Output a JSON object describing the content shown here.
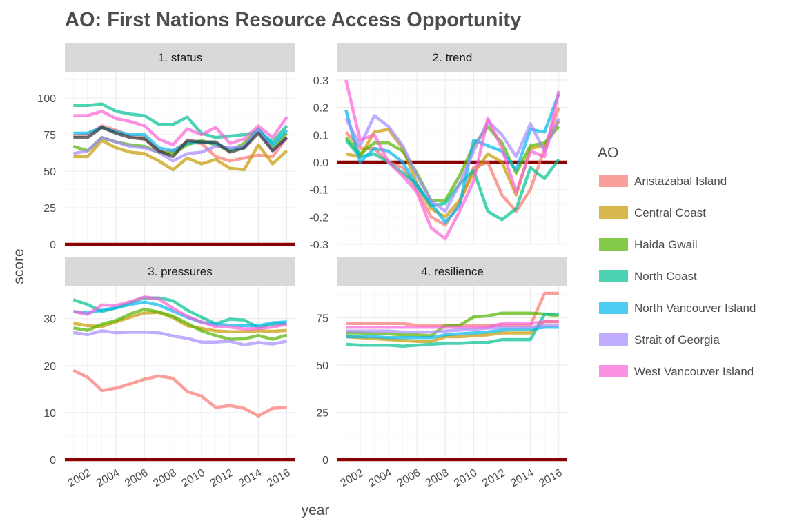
{
  "chart_data": {
    "type": "line",
    "title": "AO: First Nations Resource Access Opportunity",
    "xlabel": "year",
    "ylabel": "score",
    "legend": {
      "title": "AO",
      "placement": "right",
      "entries": [
        "Aristazabal Island",
        "Central Coast",
        "Haida Gwaii",
        "North Coast",
        "North Vancouver Island",
        "Strait of Georgia",
        "West Vancouver Island"
      ]
    },
    "series_colors": {
      "Aristazabal Island": "#F8766D",
      "Central Coast": "#C49A00",
      "Haida Gwaii": "#53B400",
      "North Coast": "#00C094",
      "North Vancouver Island": "#00B6EB",
      "Strait of Georgia": "#A58AFF",
      "West Vancouver Island": "#FB61D7",
      "extra": "#333333"
    },
    "reference_line_color": "#8B0000",
    "x": [
      2001,
      2002,
      2003,
      2004,
      2005,
      2006,
      2007,
      2008,
      2009,
      2010,
      2011,
      2012,
      2013,
      2014,
      2015,
      2016
    ],
    "x_ticks": [
      2002,
      2004,
      2006,
      2008,
      2010,
      2012,
      2014,
      2016
    ],
    "facets": [
      {
        "label": "1. status",
        "ylim": [
          0,
          118
        ],
        "y_ticks": [
          0,
          25,
          50,
          75,
          100
        ],
        "reference_line": 0,
        "series": [
          {
            "name": "Aristazabal Island",
            "values": [
              74,
              75,
              81,
              78,
              74,
              73,
              63,
              64,
              70,
              69,
              60,
              57,
              59,
              61,
              60,
              73
            ]
          },
          {
            "name": "Central Coast",
            "values": [
              60,
              60,
              71,
              66,
              63,
              62,
              57,
              51,
              59,
              55,
              58,
              52,
              51,
              68,
              55,
              64
            ]
          },
          {
            "name": "Haida Gwaii",
            "values": [
              67,
              64,
              73,
              70,
              68,
              67,
              63,
              62,
              68,
              71,
              68,
              64,
              69,
              79,
              66,
              76
            ]
          },
          {
            "name": "North Coast",
            "values": [
              95,
              95,
              96,
              91,
              89,
              88,
              82,
              82,
              87,
              76,
              73,
              74,
              75,
              77,
              70,
              81
            ]
          },
          {
            "name": "North Vancouver Island",
            "values": [
              76,
              76,
              80,
              77,
              75,
              75,
              66,
              64,
              69,
              70,
              69,
              65,
              66,
              79,
              68,
              78
            ]
          },
          {
            "name": "Strait of Georgia",
            "values": [
              62,
              64,
              73,
              70,
              67,
              66,
              63,
              57,
              62,
              63,
              67,
              66,
              67,
              78,
              64,
              73
            ]
          },
          {
            "name": "West Vancouver Island",
            "values": [
              88,
              88,
              91,
              86,
              84,
              81,
              72,
              68,
              79,
              75,
              80,
              69,
              72,
              81,
              73,
              87
            ]
          },
          {
            "name": "",
            "values": [
              73,
              73,
              80,
              76,
              73,
              72,
              64,
              60,
              71,
              70,
              70,
              63,
              66,
              76,
              64,
              73
            ]
          }
        ]
      },
      {
        "label": "2. trend",
        "ylim": [
          -0.3,
          0.33
        ],
        "y_ticks": [
          -0.3,
          -0.2,
          -0.1,
          0.0,
          0.1,
          0.2,
          0.3
        ],
        "reference_line": 0,
        "series": [
          {
            "name": "Aristazabal Island",
            "values": [
              0.11,
              0.05,
              0.05,
              0.0,
              -0.02,
              -0.1,
              -0.2,
              -0.23,
              -0.15,
              -0.02,
              0.0,
              -0.12,
              -0.18,
              -0.1,
              0.05,
              0.2
            ]
          },
          {
            "name": "Central Coast",
            "values": [
              0.03,
              0.02,
              0.11,
              0.12,
              0.05,
              -0.08,
              -0.17,
              -0.2,
              -0.14,
              -0.04,
              0.03,
              0.0,
              -0.12,
              0.05,
              0.06,
              0.15
            ]
          },
          {
            "name": "Haida Gwaii",
            "values": [
              0.09,
              0.03,
              0.07,
              0.07,
              0.04,
              -0.04,
              -0.14,
              -0.14,
              -0.05,
              0.06,
              0.13,
              0.07,
              -0.04,
              0.06,
              0.07,
              0.13
            ]
          },
          {
            "name": "North Coast",
            "values": [
              0.08,
              0.02,
              0.03,
              0.0,
              -0.04,
              -0.08,
              -0.16,
              -0.15,
              -0.08,
              -0.03,
              -0.18,
              -0.21,
              -0.17,
              -0.02,
              -0.06,
              0.01
            ]
          },
          {
            "name": "North Vancouver Island",
            "values": [
              0.19,
              0.0,
              0.05,
              0.04,
              0.0,
              -0.09,
              -0.15,
              -0.22,
              -0.16,
              0.08,
              0.06,
              0.04,
              -0.03,
              0.12,
              0.11,
              0.25
            ]
          },
          {
            "name": "Strait of Georgia",
            "values": [
              0.16,
              0.06,
              0.17,
              0.13,
              0.06,
              -0.05,
              -0.14,
              -0.18,
              -0.08,
              0.04,
              0.15,
              0.1,
              0.02,
              0.14,
              0.04,
              0.16
            ]
          },
          {
            "name": "West Vancouver Island",
            "values": [
              0.3,
              0.08,
              0.1,
              0.0,
              -0.05,
              -0.11,
              -0.24,
              -0.28,
              -0.18,
              -0.07,
              0.16,
              0.05,
              -0.11,
              0.04,
              0.02,
              0.26
            ]
          }
        ]
      },
      {
        "label": "3. pressures",
        "ylim": [
          0,
          37
        ],
        "y_ticks": [
          0,
          10,
          20,
          30
        ],
        "reference_line": 0,
        "series": [
          {
            "name": "Aristazabal Island",
            "values": [
              19,
              17.5,
              14.7,
              15.2,
              16.1,
              17.1,
              17.8,
              17.3,
              14.5,
              13.5,
              11.1,
              11.5,
              10.9,
              9.3,
              10.9,
              11.1
            ]
          },
          {
            "name": "Central Coast",
            "values": [
              29,
              28.5,
              28.3,
              29.3,
              30.3,
              31.2,
              31.3,
              30.2,
              28.5,
              27.9,
              27.4,
              27.2,
              27.2,
              27.4,
              27.3,
              27.5
            ]
          },
          {
            "name": "Haida Gwaii",
            "values": [
              28,
              27.5,
              28.8,
              29.6,
              31.0,
              32.0,
              31.4,
              30.5,
              29.0,
              27.4,
              26.4,
              25.6,
              25.7,
              26.4,
              25.6,
              26.5
            ]
          },
          {
            "name": "North Coast",
            "values": [
              34,
              33.0,
              31.5,
              32.3,
              33.4,
              34.4,
              34.4,
              33.8,
              31.8,
              30.3,
              28.9,
              29.9,
              29.7,
              28.1,
              28.8,
              28.9
            ]
          },
          {
            "name": "North Vancouver Island",
            "values": [
              31.5,
              31.2,
              31.8,
              32.3,
              33.0,
              33.5,
              32.9,
              31.6,
              30.3,
              29.2,
              28.8,
              28.6,
              28.5,
              28.5,
              29.1,
              29.3
            ]
          },
          {
            "name": "Strait of Georgia",
            "values": [
              27,
              26.6,
              27.4,
              27.0,
              27.1,
              27.1,
              27.0,
              26.3,
              25.8,
              25.0,
              25.0,
              25.2,
              24.4,
              24.9,
              24.6,
              25.2
            ]
          },
          {
            "name": "West Vancouver Island",
            "values": [
              31.5,
              30.9,
              32.9,
              32.8,
              33.6,
              34.6,
              34.2,
              32.2,
              30.5,
              29.3,
              28.3,
              28.2,
              27.8,
              27.9,
              28.2,
              28.8
            ]
          }
        ]
      },
      {
        "label": "4. resilience",
        "ylim": [
          0,
          92
        ],
        "y_ticks": [
          0,
          25,
          50,
          75
        ],
        "reference_line": 0,
        "series": [
          {
            "name": "Aristazabal Island",
            "values": [
              72,
              72,
              72,
              72,
              72,
              71,
              71,
              71,
              71,
              71,
              71,
              71,
              71,
              71,
              88,
              88
            ]
          },
          {
            "name": "Central Coast",
            "values": [
              65,
              64.5,
              64,
              63.5,
              63,
              62.5,
              62.5,
              65,
              65,
              65.5,
              66,
              67,
              67,
              67,
              73,
              73
            ]
          },
          {
            "name": "Haida Gwaii",
            "values": [
              67,
              67,
              66.5,
              66.5,
              66,
              66,
              65.5,
              71,
              71,
              75.5,
              76,
              77.5,
              77.5,
              77.5,
              77,
              76
            ]
          },
          {
            "name": "North Coast",
            "values": [
              61,
              60.5,
              60.5,
              60.5,
              60,
              60.5,
              61,
              61.5,
              61.5,
              62,
              62,
              63.5,
              63.5,
              63.5,
              77,
              77
            ]
          },
          {
            "name": "North Vancouver Island",
            "values": [
              65,
              65,
              65,
              64.5,
              64.5,
              64.5,
              64.5,
              66,
              66.5,
              67,
              67.5,
              68.5,
              69,
              69,
              70,
              70
            ]
          },
          {
            "name": "Strait of Georgia",
            "values": [
              68,
              68,
              68,
              68,
              67.5,
              67.5,
              67.5,
              68,
              68.5,
              69,
              69.5,
              70,
              70,
              70,
              71,
              71
            ]
          },
          {
            "name": "West Vancouver Island",
            "values": [
              70,
              70,
              70,
              70,
              70,
              70,
              70,
              70,
              70,
              70,
              70,
              72,
              72,
              72,
              73,
              73
            ]
          }
        ]
      }
    ]
  }
}
